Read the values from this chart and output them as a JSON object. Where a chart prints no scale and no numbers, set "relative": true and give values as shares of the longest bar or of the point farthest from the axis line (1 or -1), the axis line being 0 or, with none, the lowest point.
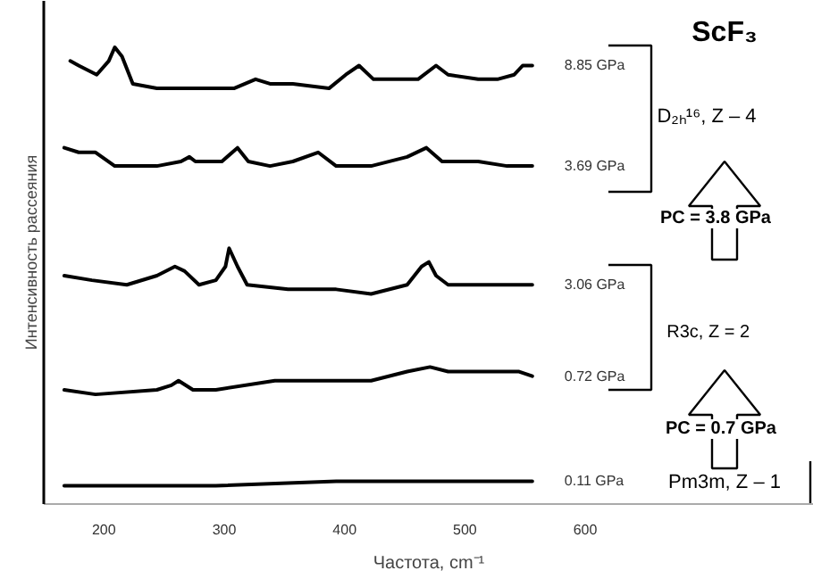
{
  "chart_data": {
    "type": "line",
    "relative": true,
    "xlabel": "Частота, cm⁻¹",
    "ylabel": "Интенсивность рассеяния",
    "xlim": [
      150,
      790
    ],
    "xticks": [
      200,
      300,
      400,
      500,
      600
    ],
    "series": [
      {
        "name": "8.85 GPa",
        "color": "#000000",
        "x": [
          172,
          179,
          194,
          204,
          209,
          215,
          224,
          244,
          283,
          308,
          326,
          338,
          357,
          387,
          401,
          412,
          424,
          441,
          461,
          476,
          486,
          511,
          527,
          541,
          548,
          556
        ],
        "values": [
          0.97,
          0.96,
          0.94,
          0.97,
          1.0,
          0.98,
          0.92,
          0.91,
          0.91,
          0.91,
          0.93,
          0.92,
          0.92,
          0.91,
          0.94,
          0.96,
          0.93,
          0.93,
          0.93,
          0.96,
          0.94,
          0.93,
          0.93,
          0.94,
          0.96,
          0.96
        ]
      },
      {
        "name": "3.69 GPa",
        "color": "#000000",
        "x": [
          167,
          179,
          193,
          209,
          244,
          264,
          271,
          276,
          298,
          311,
          320,
          338,
          357,
          378,
          393,
          422,
          452,
          468,
          481,
          511,
          535,
          556
        ],
        "values": [
          0.78,
          0.77,
          0.77,
          0.74,
          0.74,
          0.75,
          0.76,
          0.75,
          0.75,
          0.78,
          0.75,
          0.74,
          0.75,
          0.77,
          0.74,
          0.74,
          0.76,
          0.78,
          0.75,
          0.75,
          0.74,
          0.74
        ]
      },
      {
        "name": "3.06 GPa",
        "color": "#000000",
        "x": [
          167,
          190,
          219,
          244,
          259,
          267,
          279,
          293,
          301,
          304,
          311,
          319,
          353,
          393,
          422,
          452,
          464,
          470,
          476,
          486,
          520,
          556
        ],
        "values": [
          0.5,
          0.49,
          0.48,
          0.5,
          0.52,
          0.51,
          0.48,
          0.49,
          0.52,
          0.56,
          0.52,
          0.48,
          0.47,
          0.47,
          0.46,
          0.48,
          0.52,
          0.53,
          0.5,
          0.48,
          0.48,
          0.48
        ]
      },
      {
        "name": "0.72 GPa",
        "color": "#000000",
        "x": [
          167,
          193,
          244,
          256,
          262,
          274,
          293,
          342,
          393,
          422,
          452,
          471,
          486,
          520,
          545,
          556
        ],
        "values": [
          0.25,
          0.24,
          0.25,
          0.26,
          0.27,
          0.25,
          0.25,
          0.27,
          0.27,
          0.27,
          0.29,
          0.3,
          0.29,
          0.29,
          0.29,
          0.28
        ]
      },
      {
        "name": "0.11 GPa",
        "color": "#000000",
        "x": [
          167,
          193,
          293,
          393,
          490,
          556
        ],
        "values": [
          0.04,
          0.04,
          0.04,
          0.05,
          0.05,
          0.05
        ]
      }
    ],
    "annotations": [
      "ScF₃",
      "D₂ₕ¹⁶, Z – 4",
      "PC = 3.8 GPa",
      "R3c,  Z  =  2",
      "PC = 0.7 GPa",
      "Pm3m, Z – 1"
    ]
  }
}
